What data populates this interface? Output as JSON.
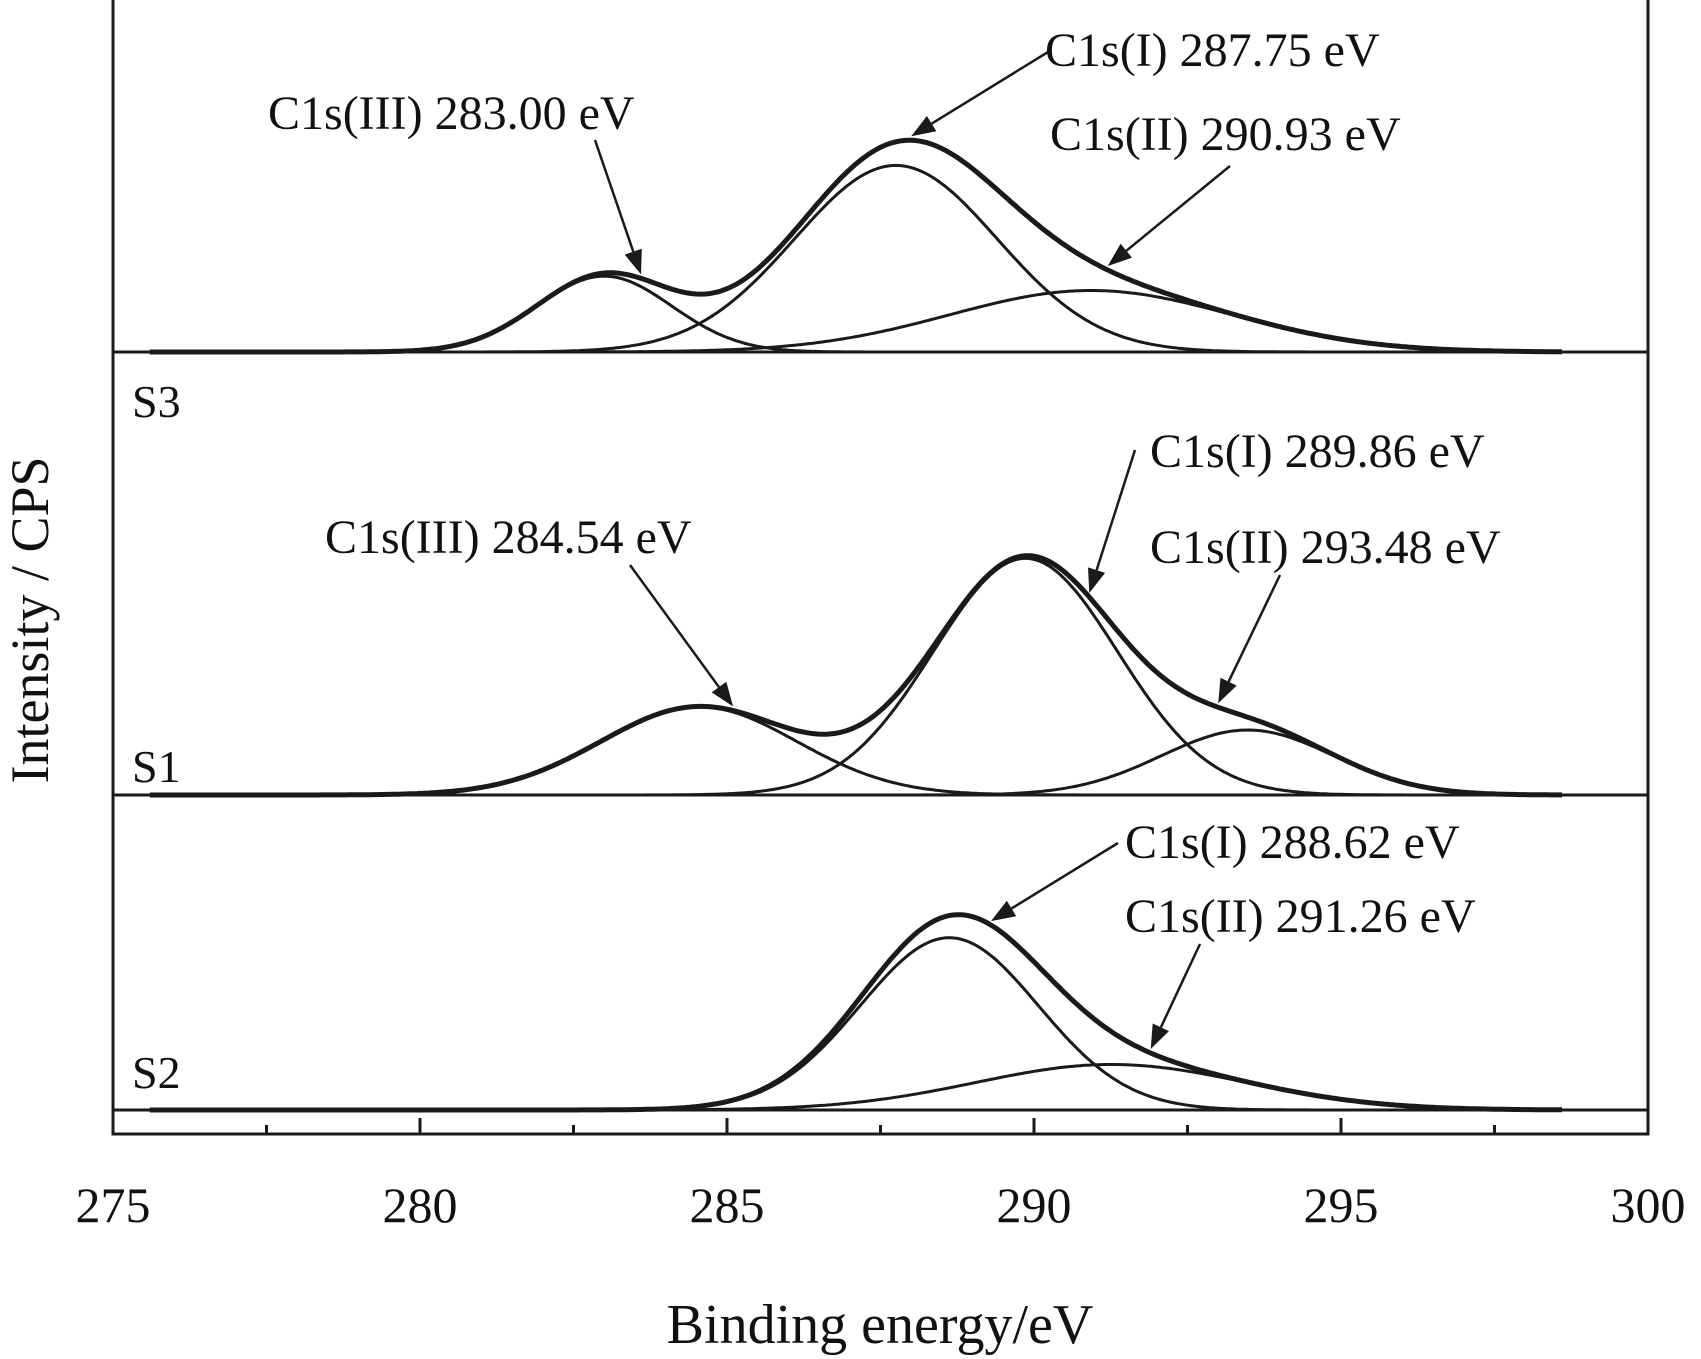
{
  "chart_data": {
    "type": "line",
    "xlabel": "Binding energy/eV",
    "ylabel": "Intensity / CPS",
    "xlim": [
      275,
      300
    ],
    "x_ticks": [
      275,
      280,
      285,
      290,
      295,
      300
    ],
    "x_tick_labels": [
      "275",
      "280",
      "285",
      "290",
      "295",
      "300"
    ],
    "grid": false,
    "legend": "none",
    "line_color": "#1a1a1a",
    "panels": [
      {
        "sample": "S3",
        "peaks": [
          {
            "component": "C1s(III)",
            "center": 283.0,
            "amplitude": 0.37,
            "sigma": 1.1
          },
          {
            "component": "C1s(I)",
            "center": 287.75,
            "amplitude": 0.91,
            "sigma": 1.65
          },
          {
            "component": "C1s(II)",
            "center": 290.93,
            "amplitude": 0.3,
            "sigma": 2.3
          }
        ],
        "annotations": [
          {
            "text": "C1s(III) 283.00 eV",
            "target_x": 283.6
          },
          {
            "text": "C1s(I) 287.75 eV",
            "target_x": 288.0
          },
          {
            "text": "C1s(II) 290.93 eV",
            "target_x": 291.2
          }
        ]
      },
      {
        "sample": "S1",
        "peaks": [
          {
            "component": "C1s(III)",
            "center": 284.54,
            "amplitude": 0.38,
            "sigma": 1.6
          },
          {
            "component": "C1s(I)",
            "center": 289.86,
            "amplitude": 1.02,
            "sigma": 1.5
          },
          {
            "component": "C1s(II)",
            "center": 293.48,
            "amplitude": 0.28,
            "sigma": 1.4
          }
        ],
        "annotations": [
          {
            "text": "C1s(III) 284.54 eV",
            "target_x": 285.1
          },
          {
            "text": "C1s(I) 289.86 eV",
            "target_x": 290.9
          },
          {
            "text": "C1s(II) 293.48 eV",
            "target_x": 293.0
          }
        ]
      },
      {
        "sample": "S2",
        "peaks": [
          {
            "component": "C1s(I)",
            "center": 288.62,
            "amplitude": 0.87,
            "sigma": 1.45
          },
          {
            "component": "C1s(II)",
            "center": 291.26,
            "amplitude": 0.23,
            "sigma": 2.2
          }
        ],
        "annotations": [
          {
            "text": "C1s(I) 288.62 eV",
            "target_x": 289.3
          },
          {
            "text": "C1s(II) 291.26 eV",
            "target_x": 291.9
          }
        ]
      }
    ]
  }
}
